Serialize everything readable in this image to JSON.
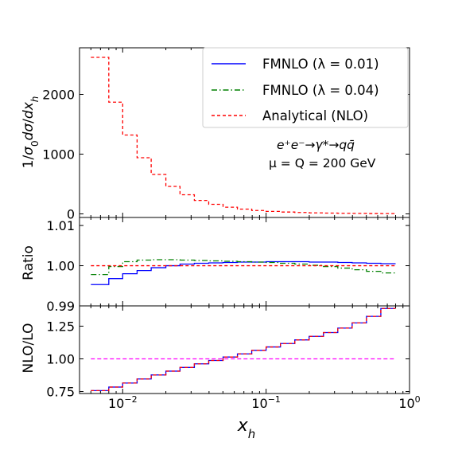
{
  "chart_data": {
    "type": "line",
    "x_label": "x_h",
    "x_edges": [
      0.006,
      0.008,
      0.01,
      0.0126,
      0.0158,
      0.02,
      0.0251,
      0.0316,
      0.0398,
      0.0501,
      0.0631,
      0.0794,
      0.1,
      0.1259,
      0.1585,
      0.1995,
      0.2512,
      0.3162,
      0.3981,
      0.5012,
      0.631,
      0.8
    ],
    "x_ticks": [
      {
        "value": 0.01,
        "base": "10",
        "exp": "−2"
      },
      {
        "value": 0.1,
        "base": "10",
        "exp": "−1"
      },
      {
        "value": 1,
        "base": "10",
        "exp": "0"
      }
    ],
    "annotation": {
      "process": "e⁺e⁻→γ*→qq̄",
      "scale": "μ = Q = 200 GeV"
    },
    "legend": [
      {
        "label": "FMNLO (λ = 0.01)",
        "color": "#0000ff",
        "dash": "solid"
      },
      {
        "label": "FMNLO (λ = 0.04)",
        "color": "#008000",
        "dash": "dashdot"
      },
      {
        "label": "Analytical (NLO)",
        "color": "#ff0000",
        "dash": "dashed"
      }
    ],
    "panels": [
      {
        "id": "dist",
        "ylabel": "1/σ₀dσ/dx_h",
        "ylim": [
          -60,
          2780
        ],
        "yticks": [
          0,
          1000,
          2000
        ],
        "series": [
          {
            "name": "Analytical (NLO)",
            "color": "#ff0000",
            "dash": "4,3",
            "width": 1.3,
            "values": [
              2620,
              1870,
              1320,
              940,
              660,
              460,
              320,
              225,
              160,
              112,
              80,
              57,
              42,
              31,
              23,
              17,
              13,
              10,
              8,
              6,
              5
            ]
          }
        ]
      },
      {
        "id": "ratio",
        "ylabel": "Ratio",
        "ylim": [
          0.99,
          1.012
        ],
        "yticks": [
          0.99,
          1.0,
          1.01
        ],
        "ytick_labels": [
          "0.99",
          "1.00",
          "1.01"
        ],
        "series": [
          {
            "name": "FMNLO (λ = 0.01)",
            "color": "#0000ff",
            "dash": "",
            "width": 1.3,
            "values": [
              0.9953,
              0.9968,
              0.998,
              0.9988,
              0.9995,
              1.0,
              1.0004,
              1.0006,
              1.0007,
              1.0008,
              1.0009,
              1.0009,
              1.001,
              1.001,
              1.001,
              1.0009,
              1.0009,
              1.0008,
              1.0007,
              1.0006,
              1.0005
            ]
          },
          {
            "name": "FMNLO (λ = 0.04)",
            "color": "#008000",
            "dash": "7,3,1.5,3",
            "width": 1.3,
            "values": [
              0.9978,
              0.9998,
              1.001,
              1.0014,
              1.0015,
              1.0015,
              1.0014,
              1.0013,
              1.0012,
              1.0011,
              1.001,
              1.0009,
              1.0008,
              1.0006,
              1.0004,
              1.0001,
              0.9998,
              0.9994,
              0.999,
              0.9986,
              0.9982
            ]
          },
          {
            "name": "Analytical (NLO)",
            "color": "#ff0000",
            "dash": "4,3",
            "width": 1.3,
            "values": [
              1.0,
              1.0,
              1.0,
              1.0,
              1.0,
              1.0,
              1.0,
              1.0,
              1.0,
              1.0,
              1.0,
              1.0,
              1.0,
              1.0,
              1.0,
              1.0,
              1.0,
              1.0,
              1.0,
              1.0,
              1.0
            ]
          }
        ]
      },
      {
        "id": "kfac",
        "ylabel": "NLO/LO",
        "ylim": [
          0.735,
          1.405
        ],
        "yticks": [
          0.75,
          1.0,
          1.25
        ],
        "ytick_labels": [
          "0.75",
          "1.00",
          "1.25"
        ],
        "series": [
          {
            "name": "NLO/LO",
            "color": "#ff00ff",
            "dash": "5,3",
            "width": 1.3,
            "flat": true,
            "values": [
              1.0
            ]
          },
          {
            "name": "FMNLO (λ = 0.01)",
            "color": "#0000ff",
            "dash": "",
            "width": 1.3,
            "values": [
              0.757,
              0.784,
              0.815,
              0.846,
              0.877,
              0.906,
              0.934,
              0.962,
              0.988,
              1.014,
              1.038,
              1.065,
              1.091,
              1.117,
              1.145,
              1.172,
              1.201,
              1.235,
              1.275,
              1.325,
              1.385
            ]
          },
          {
            "name": "Analytical (NLO)",
            "color": "#ff0000",
            "dash": "4,3",
            "width": 1.3,
            "values": [
              0.757,
              0.784,
              0.815,
              0.846,
              0.877,
              0.906,
              0.934,
              0.962,
              0.988,
              1.014,
              1.038,
              1.065,
              1.091,
              1.117,
              1.145,
              1.172,
              1.201,
              1.235,
              1.275,
              1.325,
              1.385
            ]
          }
        ]
      }
    ]
  }
}
